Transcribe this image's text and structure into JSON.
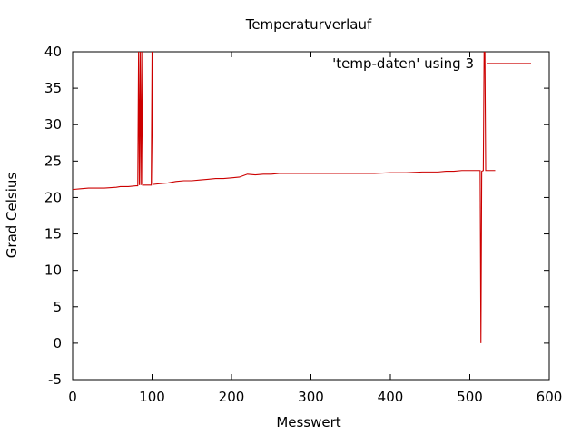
{
  "chart_data": {
    "type": "line",
    "title": "Temperaturverlauf",
    "xlabel": "Messwert",
    "ylabel": "Grad Celsius",
    "xlim": [
      0,
      600
    ],
    "ylim": [
      -5,
      40
    ],
    "xticks": [
      0,
      100,
      200,
      300,
      400,
      500,
      600
    ],
    "yticks": [
      -5,
      0,
      5,
      10,
      15,
      20,
      25,
      30,
      35,
      40
    ],
    "grid": false,
    "legend": "top-right",
    "series": [
      {
        "name": "'temp-daten' using 3",
        "color": "#cc0000",
        "x": [
          0,
          10,
          20,
          40,
          55,
          60,
          70,
          80,
          82,
          83,
          84,
          85,
          86,
          87,
          88,
          90,
          95,
          99,
          100,
          101,
          102,
          110,
          120,
          130,
          140,
          150,
          160,
          170,
          180,
          190,
          200,
          210,
          215,
          220,
          230,
          240,
          250,
          260,
          270,
          280,
          300,
          320,
          340,
          360,
          380,
          400,
          420,
          440,
          460,
          470,
          480,
          490,
          500,
          510,
          513,
          514,
          515,
          517,
          518,
          519,
          520,
          521,
          522,
          525,
          530,
          532
        ],
        "y": [
          21.1,
          21.2,
          21.3,
          21.3,
          21.4,
          21.5,
          21.5,
          21.6,
          21.6,
          40,
          21.7,
          40,
          21.7,
          40,
          21.7,
          21.7,
          21.7,
          21.7,
          40,
          21.8,
          21.8,
          21.9,
          22.0,
          22.2,
          22.3,
          22.3,
          22.4,
          22.5,
          22.6,
          22.6,
          22.7,
          22.8,
          23.0,
          23.2,
          23.1,
          23.2,
          23.2,
          23.3,
          23.3,
          23.3,
          23.3,
          23.3,
          23.3,
          23.3,
          23.3,
          23.4,
          23.4,
          23.5,
          23.5,
          23.6,
          23.6,
          23.7,
          23.7,
          23.7,
          23.7,
          0,
          23.6,
          23.7,
          40,
          40,
          23.7,
          23.7,
          23.7,
          23.7,
          23.7,
          23.7
        ]
      }
    ]
  }
}
